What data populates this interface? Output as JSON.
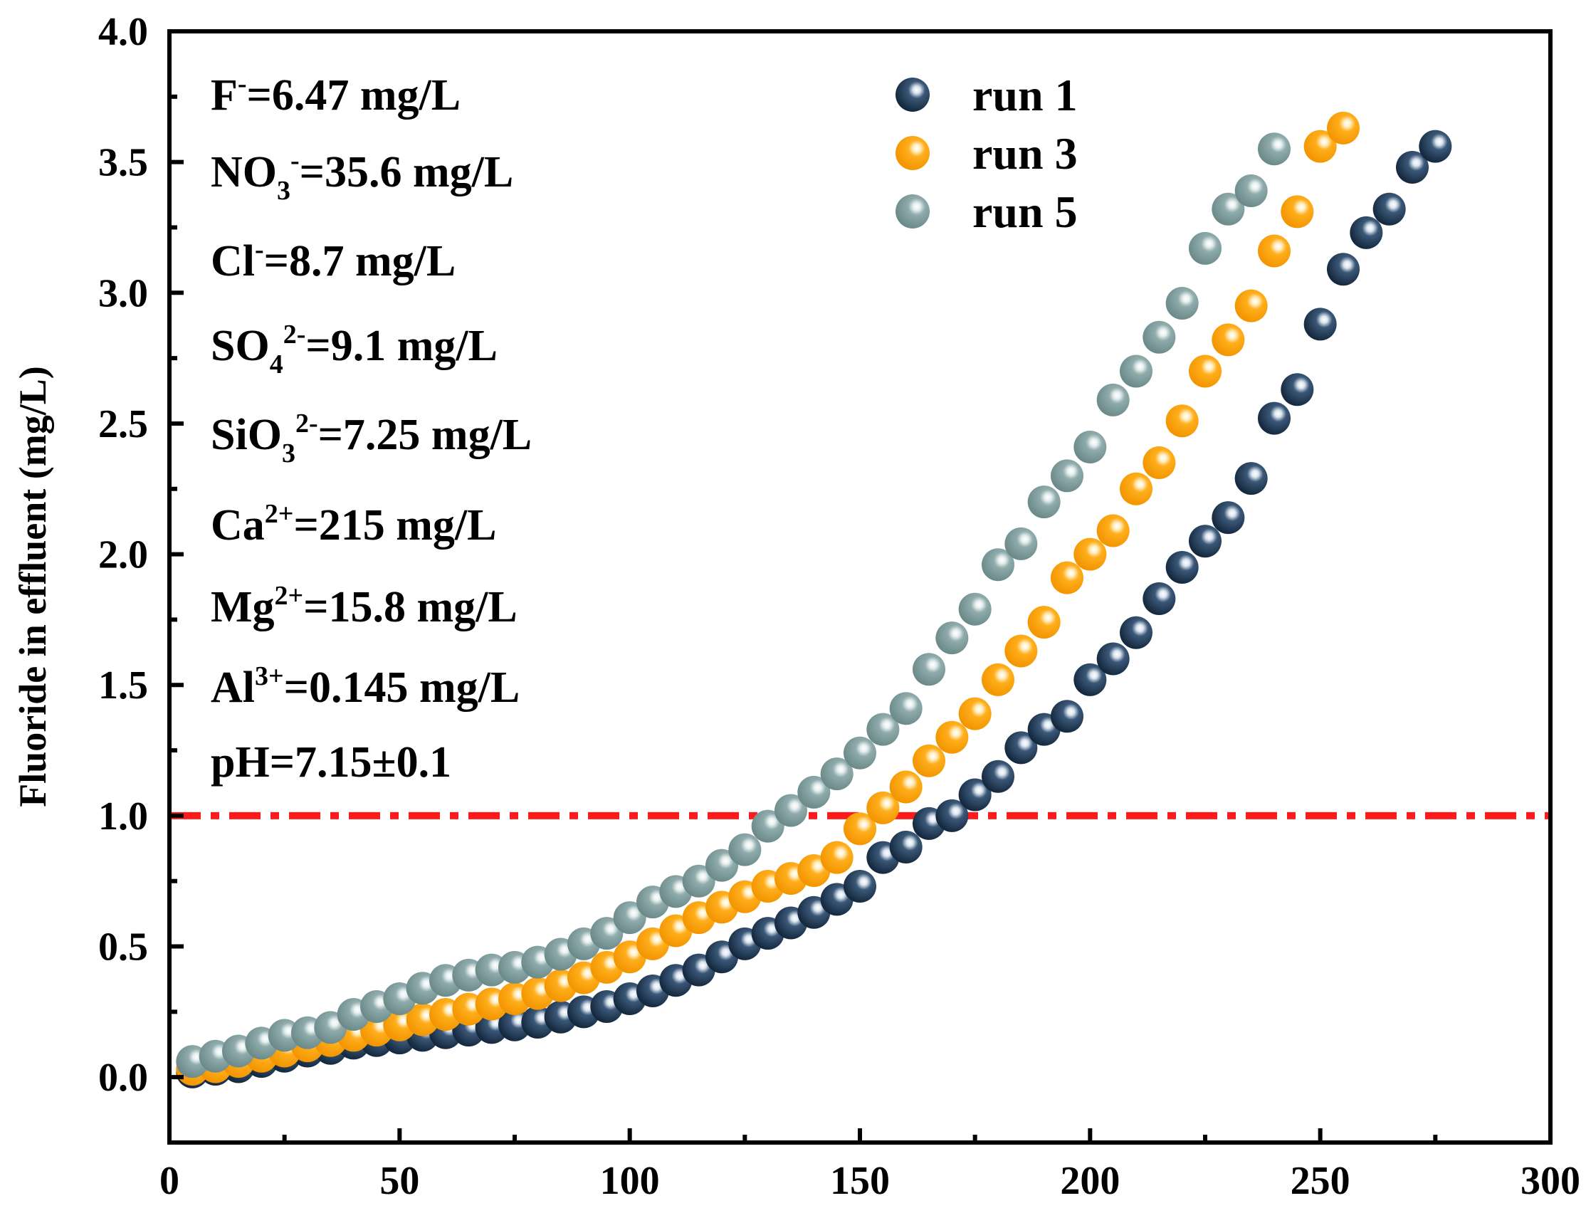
{
  "chart_data": {
    "type": "scatter",
    "title": "",
    "xlabel": "",
    "ylabel": "Fluoride in effluent (mg/L)",
    "xlim": [
      0,
      300
    ],
    "ylim": [
      -0.25,
      4.0
    ],
    "x_ticks": [
      0,
      50,
      100,
      150,
      200,
      250,
      300
    ],
    "x_tick_labels": [
      "0",
      "50",
      "100",
      "150",
      "200",
      "250",
      "300"
    ],
    "y_ticks": [
      0.0,
      0.5,
      1.0,
      1.5,
      2.0,
      2.5,
      3.0,
      3.5,
      4.0
    ],
    "y_tick_labels": [
      "0.0",
      "0.5",
      "1.0",
      "1.5",
      "2.0",
      "2.5",
      "3.0",
      "3.5",
      "4.0"
    ],
    "grid": false,
    "legend_position": "top-center",
    "reference_line": {
      "y": 1.0,
      "color": "#ff1a1a",
      "style": "dash-dot"
    },
    "series": [
      {
        "name": "run 1",
        "color": "#1e3a57",
        "x": [
          5,
          10,
          15,
          20,
          25,
          30,
          35,
          40,
          45,
          50,
          55,
          60,
          65,
          70,
          75,
          80,
          85,
          90,
          95,
          100,
          105,
          110,
          115,
          120,
          125,
          130,
          135,
          140,
          145,
          150,
          155,
          160,
          165,
          170,
          175,
          180,
          185,
          190,
          195,
          200,
          205,
          210,
          215,
          220,
          225,
          230,
          235,
          240,
          245,
          250,
          255,
          260,
          265,
          270,
          275
        ],
        "values": [
          0.02,
          0.03,
          0.04,
          0.06,
          0.08,
          0.1,
          0.11,
          0.13,
          0.14,
          0.15,
          0.16,
          0.17,
          0.18,
          0.19,
          0.2,
          0.21,
          0.23,
          0.25,
          0.27,
          0.3,
          0.33,
          0.37,
          0.41,
          0.46,
          0.51,
          0.55,
          0.59,
          0.63,
          0.68,
          0.73,
          0.84,
          0.88,
          0.97,
          1.0,
          1.08,
          1.15,
          1.26,
          1.33,
          1.38,
          1.52,
          1.6,
          1.7,
          1.83,
          1.95,
          2.05,
          2.14,
          2.29,
          2.52,
          2.63,
          2.88,
          3.09,
          3.23,
          3.32,
          3.48,
          3.56
        ]
      },
      {
        "name": "run 3",
        "color": "#ffa500",
        "x": [
          5,
          10,
          15,
          20,
          25,
          30,
          35,
          40,
          45,
          50,
          55,
          60,
          65,
          70,
          75,
          80,
          85,
          90,
          95,
          100,
          105,
          110,
          115,
          120,
          125,
          130,
          135,
          140,
          145,
          150,
          155,
          160,
          165,
          170,
          175,
          180,
          185,
          190,
          195,
          200,
          205,
          210,
          215,
          220,
          225,
          230,
          235,
          240,
          245,
          250,
          255
        ],
        "values": [
          0.03,
          0.04,
          0.06,
          0.08,
          0.1,
          0.12,
          0.14,
          0.16,
          0.18,
          0.2,
          0.22,
          0.24,
          0.26,
          0.28,
          0.3,
          0.32,
          0.35,
          0.38,
          0.42,
          0.46,
          0.51,
          0.56,
          0.61,
          0.65,
          0.69,
          0.73,
          0.76,
          0.79,
          0.84,
          0.95,
          1.03,
          1.11,
          1.21,
          1.3,
          1.39,
          1.52,
          1.63,
          1.74,
          1.91,
          2.0,
          2.09,
          2.25,
          2.35,
          2.51,
          2.7,
          2.82,
          2.95,
          3.16,
          3.31,
          3.56,
          3.63
        ]
      },
      {
        "name": "run 5",
        "color": "#86a3a3",
        "x": [
          5,
          10,
          15,
          20,
          25,
          30,
          35,
          40,
          45,
          50,
          55,
          60,
          65,
          70,
          75,
          80,
          85,
          90,
          95,
          100,
          105,
          110,
          115,
          120,
          125,
          130,
          135,
          140,
          145,
          150,
          155,
          160,
          165,
          170,
          175,
          180,
          185,
          190,
          195,
          200,
          205,
          210,
          215,
          220,
          225,
          230,
          235,
          240
        ],
        "values": [
          0.06,
          0.08,
          0.1,
          0.13,
          0.16,
          0.17,
          0.19,
          0.24,
          0.27,
          0.3,
          0.34,
          0.37,
          0.39,
          0.41,
          0.42,
          0.44,
          0.47,
          0.51,
          0.55,
          0.61,
          0.67,
          0.71,
          0.75,
          0.81,
          0.87,
          0.96,
          1.02,
          1.09,
          1.16,
          1.24,
          1.33,
          1.41,
          1.56,
          1.68,
          1.79,
          1.96,
          2.04,
          2.2,
          2.3,
          2.41,
          2.59,
          2.7,
          2.83,
          2.96,
          3.17,
          3.32,
          3.39,
          3.55
        ]
      }
    ],
    "annotations": [
      [
        "F",
        {
          "sup": "-"
        },
        "=6.47 mg/L"
      ],
      [
        "NO",
        {
          "sub": "3"
        },
        {
          "sup": "-"
        },
        "=35.6 mg/L"
      ],
      [
        "Cl",
        {
          "sup": "-"
        },
        "=8.7 mg/L"
      ],
      [
        "SO",
        {
          "sub": "4"
        },
        {
          "sup": "2-"
        },
        "=9.1 mg/L"
      ],
      [
        "SiO",
        {
          "sub": "3"
        },
        {
          "sup": "2-"
        },
        "=7.25 mg/L"
      ],
      [
        "Ca",
        {
          "sup": "2+"
        },
        "=215 mg/L"
      ],
      [
        "Mg",
        {
          "sup": "2+"
        },
        "=15.8 mg/L"
      ],
      [
        "Al",
        {
          "sup": "3+"
        },
        "=0.145 mg/L"
      ],
      [
        "pH=7.15±0.1"
      ]
    ]
  }
}
